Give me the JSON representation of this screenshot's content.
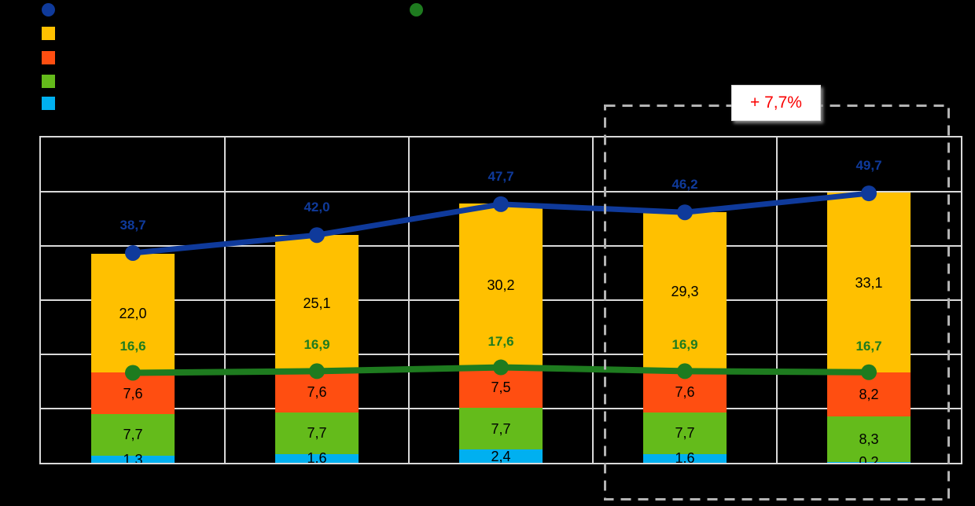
{
  "canvas": {
    "background": "#000000"
  },
  "legend": {
    "left_markers": [
      {
        "shape": "circle",
        "color": "#0F3A9B",
        "series": "total-line"
      },
      {
        "shape": "square",
        "color": "#FFC000",
        "series": "amber-segment"
      },
      {
        "shape": "square",
        "color": "#FF4E11",
        "series": "orange-segment"
      },
      {
        "shape": "square",
        "color": "#64BB1B",
        "series": "green-segment"
      },
      {
        "shape": "square",
        "color": "#00B0F0",
        "series": "cyan-segment"
      }
    ],
    "right_marker": {
      "shape": "circle",
      "color": "#1E7B1F",
      "series": "subtotal-line"
    }
  },
  "annotation": {
    "label": "+ 7,7%",
    "text_color": "#FA0000"
  },
  "chart_data": {
    "type": "combo: stacked bars + two overlay lines",
    "groups": 5,
    "decimal_separator": ",",
    "ylim": [
      0,
      60
    ],
    "y_grid_step": 10,
    "x_grid": true,
    "grid_color": "#D9D9D9",
    "bar_series_bottom_to_top": [
      {
        "name": "cyan-segment",
        "color": "#00B0F0",
        "label_color": "#000000",
        "values": [
          1.3,
          1.6,
          2.4,
          1.6,
          0.2
        ]
      },
      {
        "name": "green-segment",
        "color": "#64BB1B",
        "label_color": "#000000",
        "values": [
          7.7,
          7.7,
          7.7,
          7.7,
          8.3
        ]
      },
      {
        "name": "orange-segment",
        "color": "#FF4E11",
        "label_color": "#000000",
        "values": [
          7.6,
          7.6,
          7.5,
          7.6,
          8.2
        ]
      },
      {
        "name": "amber-segment",
        "color": "#FFC000",
        "label_color": "#000000",
        "values": [
          22.0,
          25.1,
          30.2,
          29.3,
          33.1
        ]
      }
    ],
    "line_series": [
      {
        "name": "subtotal-line",
        "color": "#1E7B1F",
        "label_color": "#1E7B1F",
        "values": [
          16.6,
          16.9,
          17.6,
          16.9,
          16.7
        ],
        "labels": [
          "16,6",
          "16,9",
          "17,6",
          "16,9",
          "16,7"
        ]
      },
      {
        "name": "total-line",
        "color": "#0F3A9B",
        "label_color": "#0F3A9B",
        "values": [
          38.7,
          42.0,
          47.7,
          46.2,
          49.7
        ],
        "labels": [
          "38,7",
          "42,0",
          "47,7",
          "46,2",
          "49,7"
        ]
      }
    ],
    "bar_segment_labels": [
      [
        "1,3",
        "7,7",
        "7,6",
        "22,0"
      ],
      [
        "1,6",
        "7,7",
        "7,6",
        "25,1"
      ],
      [
        "2,4",
        "7,7",
        "7,5",
        "30,2"
      ],
      [
        "1,6",
        "7,7",
        "7,6",
        "29,3"
      ],
      [
        "0,2",
        "8,3",
        "8,2",
        "33,1"
      ]
    ],
    "highlight": {
      "applies_to": "last two groups",
      "label": "+ 7,7%"
    }
  }
}
